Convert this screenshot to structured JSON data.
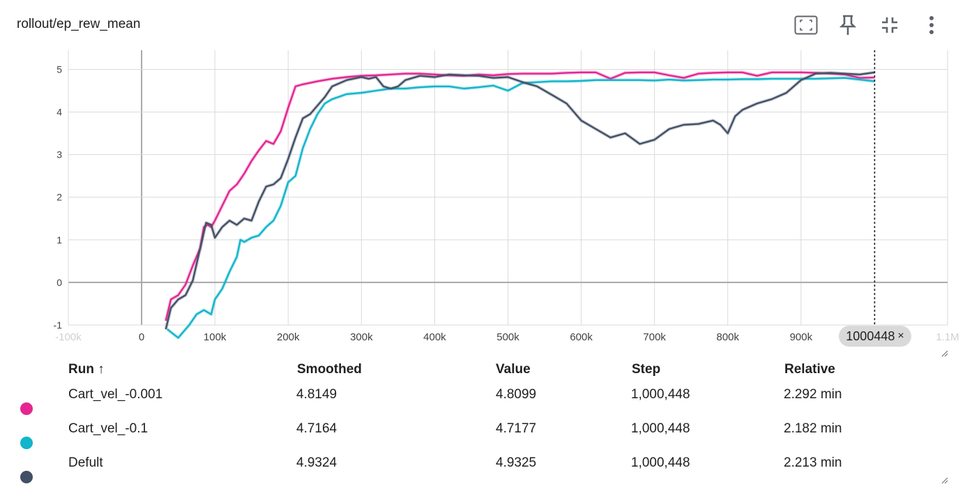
{
  "card": {
    "title": "rollout/ep_rew_mean"
  },
  "toolbar": {
    "icons": [
      "fit-domain-icon",
      "pin-icon",
      "collapse-icon",
      "more-vert-icon"
    ]
  },
  "step_pill": {
    "label": "1000448",
    "close": "×"
  },
  "chart_data": {
    "type": "line",
    "title": "rollout/ep_rew_mean",
    "xlabel": "",
    "ylabel": "",
    "xlim": [
      -100000,
      1100000
    ],
    "ylim": [
      -1,
      5.45
    ],
    "x_ticks": [
      "-100k",
      "0",
      "100k",
      "200k",
      "300k",
      "400k",
      "500k",
      "600k",
      "700k",
      "800k",
      "900k",
      "1.1M"
    ],
    "y_ticks": [
      "-1",
      "0",
      "1",
      "2",
      "3",
      "4",
      "5"
    ],
    "grid": true,
    "cursor_step": 1000448,
    "series": [
      {
        "name": "Cart_vel_-0.001",
        "color": "#e52592",
        "x": [
          33000,
          40000,
          50000,
          60000,
          70000,
          80000,
          85000,
          90000,
          95000,
          100000,
          110000,
          120000,
          130000,
          140000,
          150000,
          160000,
          170000,
          180000,
          190000,
          200000,
          210000,
          220000,
          240000,
          260000,
          280000,
          300000,
          320000,
          340000,
          360000,
          380000,
          400000,
          420000,
          440000,
          460000,
          480000,
          500000,
          520000,
          540000,
          560000,
          580000,
          600000,
          620000,
          640000,
          660000,
          680000,
          700000,
          720000,
          740000,
          760000,
          780000,
          800000,
          820000,
          840000,
          860000,
          880000,
          900000,
          920000,
          940000,
          960000,
          980000,
          1000448
        ],
        "y": [
          -0.9,
          -0.4,
          -0.3,
          -0.05,
          0.4,
          0.8,
          1.3,
          1.35,
          1.3,
          1.45,
          1.8,
          2.15,
          2.3,
          2.55,
          2.85,
          3.1,
          3.32,
          3.25,
          3.55,
          4.1,
          4.6,
          4.65,
          4.72,
          4.78,
          4.82,
          4.85,
          4.86,
          4.88,
          4.9,
          4.9,
          4.88,
          4.86,
          4.85,
          4.88,
          4.86,
          4.89,
          4.9,
          4.9,
          4.9,
          4.92,
          4.93,
          4.93,
          4.78,
          4.92,
          4.93,
          4.93,
          4.86,
          4.8,
          4.9,
          4.92,
          4.93,
          4.93,
          4.85,
          4.93,
          4.93,
          4.93,
          4.92,
          4.9,
          4.88,
          4.8,
          4.81
        ]
      },
      {
        "name": "Cart_vel_-0.1",
        "color": "#12b5cb",
        "x": [
          35000,
          50000,
          65000,
          75000,
          85000,
          95000,
          100000,
          110000,
          120000,
          130000,
          135000,
          140000,
          150000,
          160000,
          170000,
          180000,
          190000,
          200000,
          210000,
          220000,
          230000,
          240000,
          250000,
          260000,
          280000,
          300000,
          320000,
          340000,
          360000,
          380000,
          400000,
          420000,
          440000,
          460000,
          480000,
          500000,
          520000,
          540000,
          560000,
          580000,
          600000,
          620000,
          640000,
          660000,
          680000,
          700000,
          720000,
          740000,
          760000,
          780000,
          800000,
          820000,
          840000,
          860000,
          880000,
          900000,
          920000,
          940000,
          960000,
          980000,
          1000448
        ],
        "y": [
          -1.1,
          -1.3,
          -1.0,
          -0.75,
          -0.65,
          -0.75,
          -0.4,
          -0.15,
          0.25,
          0.6,
          1.0,
          0.95,
          1.05,
          1.1,
          1.3,
          1.45,
          1.8,
          2.35,
          2.5,
          3.15,
          3.6,
          3.95,
          4.2,
          4.3,
          4.42,
          4.45,
          4.5,
          4.55,
          4.55,
          4.58,
          4.6,
          4.6,
          4.55,
          4.58,
          4.62,
          4.5,
          4.68,
          4.7,
          4.72,
          4.72,
          4.73,
          4.75,
          4.75,
          4.75,
          4.75,
          4.74,
          4.76,
          4.74,
          4.75,
          4.76,
          4.76,
          4.77,
          4.77,
          4.78,
          4.78,
          4.78,
          4.78,
          4.79,
          4.8,
          4.76,
          4.72
        ]
      },
      {
        "name": "Defult",
        "color": "#425066",
        "x": [
          33000,
          40000,
          50000,
          60000,
          70000,
          80000,
          88000,
          95000,
          100000,
          110000,
          120000,
          130000,
          140000,
          150000,
          160000,
          170000,
          180000,
          190000,
          200000,
          210000,
          220000,
          230000,
          240000,
          250000,
          260000,
          280000,
          300000,
          310000,
          320000,
          330000,
          340000,
          350000,
          360000,
          380000,
          400000,
          420000,
          440000,
          460000,
          480000,
          500000,
          520000,
          540000,
          560000,
          580000,
          600000,
          620000,
          640000,
          660000,
          680000,
          700000,
          720000,
          740000,
          760000,
          780000,
          790000,
          800000,
          810000,
          820000,
          840000,
          860000,
          880000,
          900000,
          920000,
          940000,
          960000,
          980000,
          1000448
        ],
        "y": [
          -1.1,
          -0.6,
          -0.4,
          -0.3,
          0.05,
          0.8,
          1.4,
          1.35,
          1.05,
          1.3,
          1.45,
          1.35,
          1.5,
          1.45,
          1.9,
          2.25,
          2.3,
          2.45,
          2.9,
          3.4,
          3.85,
          3.95,
          4.15,
          4.35,
          4.6,
          4.75,
          4.82,
          4.78,
          4.82,
          4.6,
          4.55,
          4.6,
          4.75,
          4.85,
          4.82,
          4.88,
          4.86,
          4.85,
          4.8,
          4.82,
          4.7,
          4.6,
          4.4,
          4.2,
          3.8,
          3.6,
          3.4,
          3.5,
          3.25,
          3.35,
          3.6,
          3.7,
          3.72,
          3.8,
          3.7,
          3.5,
          3.9,
          4.05,
          4.2,
          4.3,
          4.45,
          4.75,
          4.9,
          4.92,
          4.9,
          4.88,
          4.93
        ]
      }
    ]
  },
  "runs_table": {
    "headers": {
      "run": "Run ↑",
      "smoothed": "Smoothed",
      "value": "Value",
      "step": "Step",
      "relative": "Relative"
    },
    "rows": [
      {
        "name": "Cart_vel_-0.001",
        "color": "#e52592",
        "smoothed": "4.8149",
        "value": "4.8099",
        "step": "1,000,448",
        "relative": "2.292 min"
      },
      {
        "name": "Cart_vel_-0.1",
        "color": "#12b5cb",
        "smoothed": "4.7164",
        "value": "4.7177",
        "step": "1,000,448",
        "relative": "2.182 min"
      },
      {
        "name": "Defult",
        "color": "#425066",
        "smoothed": "4.9324",
        "value": "4.9325",
        "step": "1,000,448",
        "relative": "2.213 min"
      }
    ]
  }
}
